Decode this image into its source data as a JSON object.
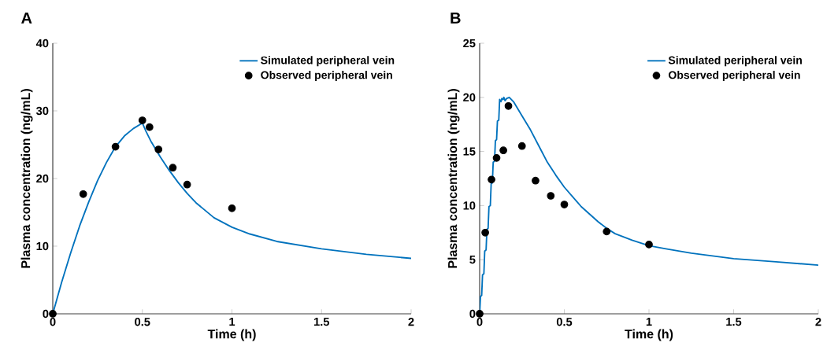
{
  "chart_data": [
    {
      "type": "line",
      "title": "A",
      "xlabel": "Time (h)",
      "ylabel": "Plasma concentration (ng/mL)",
      "xlim": [
        0,
        2
      ],
      "ylim": [
        0,
        40
      ],
      "xticks": [
        0,
        0.5,
        1,
        1.5,
        2
      ],
      "yticks": [
        0,
        10,
        20,
        30,
        40
      ],
      "legend": "top right",
      "grid": false,
      "series": [
        {
          "name": "Simulated peripheral vein",
          "color": "#0072bd",
          "marker": "none",
          "x": [
            0,
            0.05,
            0.1,
            0.15,
            0.2,
            0.25,
            0.3,
            0.35,
            0.4,
            0.45,
            0.5,
            0.52,
            0.55,
            0.6,
            0.65,
            0.7,
            0.75,
            0.8,
            0.9,
            1,
            1.1,
            1.25,
            1.5,
            1.75,
            2
          ],
          "values": [
            0,
            4.7,
            9,
            13,
            16.5,
            19.7,
            22.4,
            24.7,
            26.3,
            27.4,
            28.2,
            27,
            25.4,
            23.2,
            21.2,
            19.4,
            17.8,
            16.4,
            14.2,
            12.8,
            11.8,
            10.7,
            9.6,
            8.8,
            8.2
          ]
        },
        {
          "name": "Observed peripheral vein",
          "type": "scatter",
          "color": "#000000",
          "marker": "circle",
          "x": [
            0,
            0.17,
            0.35,
            0.5,
            0.54,
            0.59,
            0.67,
            0.75,
            1
          ],
          "values": [
            0,
            17.7,
            24.7,
            28.6,
            27.6,
            24.3,
            21.6,
            19.1,
            15.6
          ]
        }
      ]
    },
    {
      "type": "line",
      "title": "B",
      "xlabel": "Time (h)",
      "ylabel": "Plasma concentration (ng/mL)",
      "xlim": [
        0,
        2
      ],
      "ylim": [
        0,
        25
      ],
      "xticks": [
        0,
        0.5,
        1,
        1.5,
        2
      ],
      "yticks": [
        0,
        5,
        10,
        15,
        20,
        25
      ],
      "legend": "top right",
      "grid": false,
      "series": [
        {
          "name": "Simulated peripheral vein",
          "color": "#0072bd",
          "marker": "none",
          "x": [
            0,
            0.005,
            0.012,
            0.017,
            0.025,
            0.03,
            0.038,
            0.043,
            0.05,
            0.055,
            0.063,
            0.068,
            0.075,
            0.08,
            0.088,
            0.093,
            0.1,
            0.105,
            0.113,
            0.118,
            0.126,
            0.131,
            0.138,
            0.143,
            0.15,
            0.16,
            0.175,
            0.2,
            0.25,
            0.3,
            0.35,
            0.4,
            0.45,
            0.5,
            0.6,
            0.7,
            0.75,
            0.8,
            0.9,
            1,
            1.1,
            1.25,
            1.5,
            1.75,
            2
          ],
          "values": [
            0,
            1.6,
            1.7,
            3.6,
            3.7,
            5.8,
            5.9,
            7.8,
            7.9,
            9.9,
            10,
            12,
            12.1,
            14,
            14.1,
            16,
            16.1,
            17.8,
            17.9,
            19.8,
            19.6,
            19.9,
            19.8,
            20,
            19.7,
            19.9,
            20,
            19.6,
            18.3,
            17,
            15.5,
            14,
            12.8,
            11.7,
            9.9,
            8.5,
            7.9,
            7.4,
            6.8,
            6.3,
            6,
            5.6,
            5.1,
            4.8,
            4.5
          ]
        },
        {
          "name": "Observed peripheral vein",
          "type": "scatter",
          "color": "#000000",
          "marker": "circle",
          "x": [
            0,
            0.033,
            0.07,
            0.1,
            0.14,
            0.17,
            0.25,
            0.33,
            0.42,
            0.5,
            0.75,
            1
          ],
          "values": [
            0,
            7.5,
            12.4,
            14.4,
            15.1,
            19.2,
            15.5,
            12.3,
            10.9,
            10.1,
            7.6,
            6.4
          ]
        }
      ]
    }
  ]
}
